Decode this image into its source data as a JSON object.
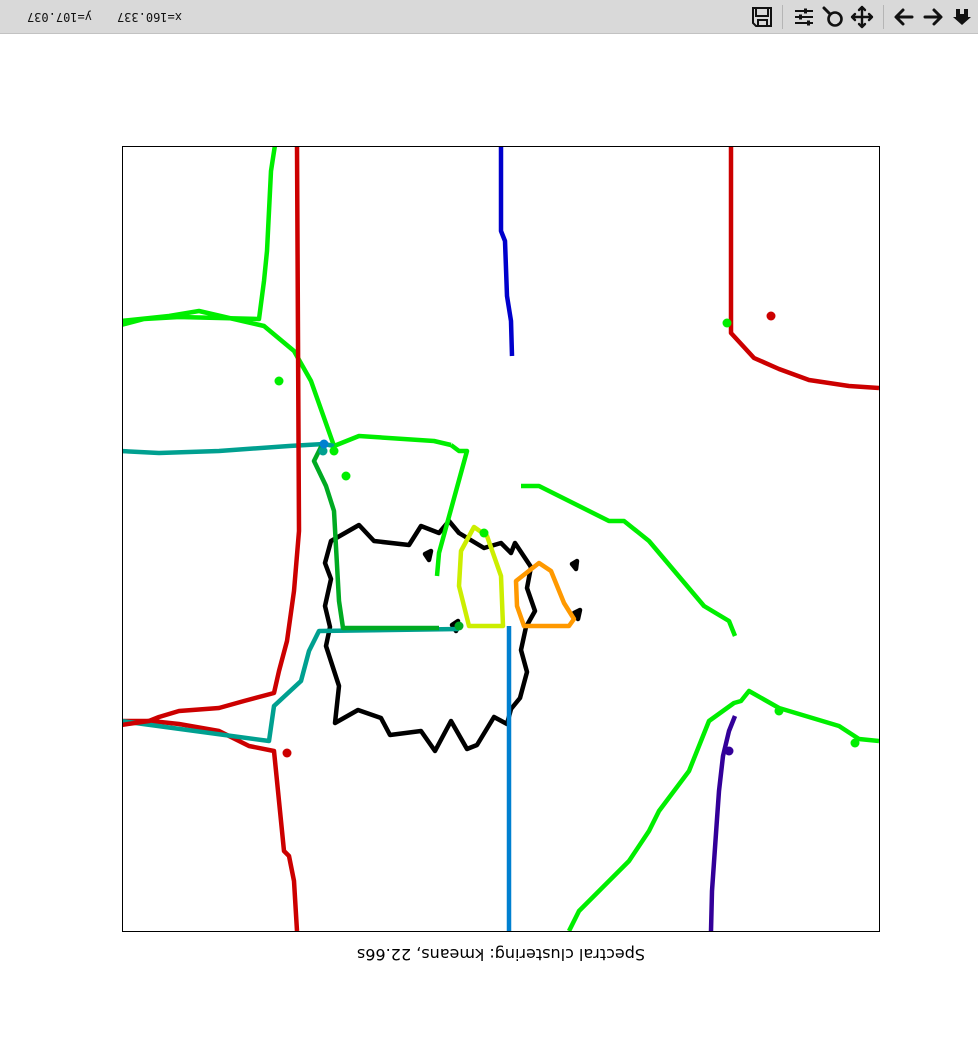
{
  "toolbar": {
    "buttons": [
      {
        "name": "home-icon",
        "tooltip": "Home"
      },
      {
        "name": "back-icon",
        "tooltip": "Back"
      },
      {
        "name": "forward-icon",
        "tooltip": "Forward"
      },
      {
        "name": "pan-icon",
        "tooltip": "Pan"
      },
      {
        "name": "zoom-icon",
        "tooltip": "Zoom"
      },
      {
        "name": "configure-subplots-icon",
        "tooltip": "Subplots"
      },
      {
        "name": "save-icon",
        "tooltip": "Save"
      }
    ],
    "coord_x": "x=160.337",
    "coord_y": "y=107.037"
  },
  "plot": {
    "title": "Spectral clustering: kmeans, 22.66s"
  },
  "colors": {
    "black": "#000000",
    "blue": "#0000cc",
    "red": "#cc0000",
    "green": "#00ee00",
    "darkgreen": "#00aa22",
    "teal": "#00a090",
    "skyblue": "#0080d0",
    "indigo": "#330099",
    "yellow": "#ccee00",
    "orange": "#ff9900"
  }
}
